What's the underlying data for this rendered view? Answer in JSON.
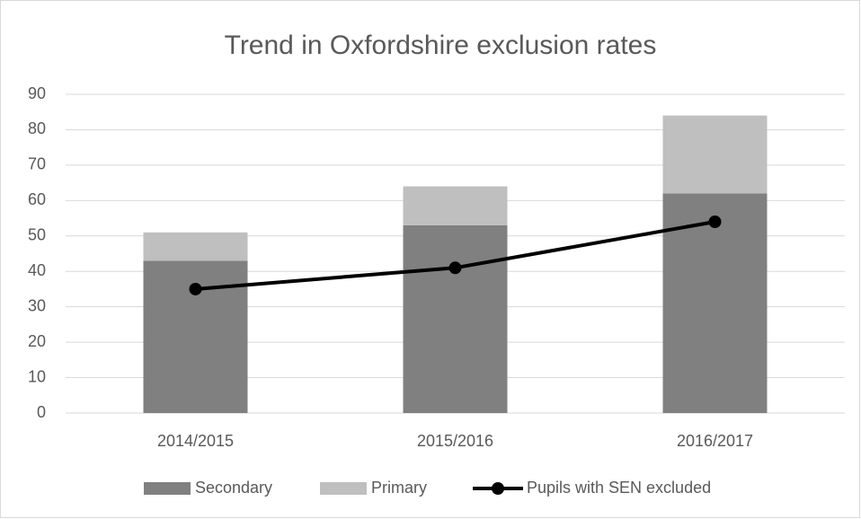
{
  "chart_data": {
    "type": "bar",
    "stacked": true,
    "title": "Trend in Oxfordshire exclusion rates",
    "categories": [
      "2014/2015",
      "2015/2016",
      "2016/2017"
    ],
    "series": [
      {
        "name": "Secondary",
        "color": "#808080",
        "type": "bar",
        "values": [
          43,
          53,
          62
        ]
      },
      {
        "name": "Primary",
        "color": "#bfbfbf",
        "type": "bar",
        "values": [
          8,
          11,
          22
        ]
      },
      {
        "name": "Pupils with SEN excluded",
        "color": "#000000",
        "type": "line",
        "values": [
          35,
          41,
          54
        ]
      }
    ],
    "ylim": [
      0,
      90
    ],
    "yticks": [
      0,
      10,
      20,
      30,
      40,
      50,
      60,
      70,
      80,
      90
    ],
    "grid": true,
    "legend": "bottom"
  }
}
